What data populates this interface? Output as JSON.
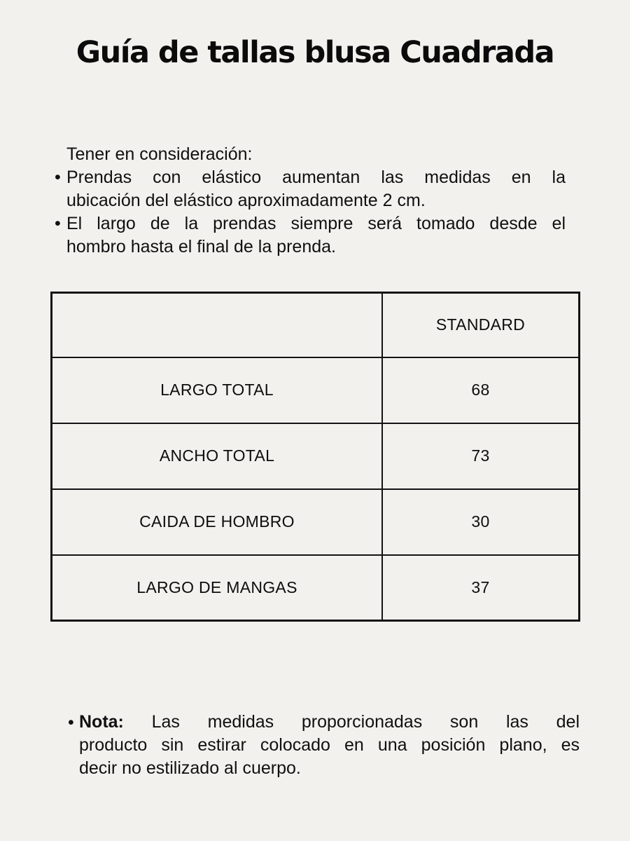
{
  "title": "Guía de tallas blusa Cuadrada",
  "glyphs": {
    "bullet": "•"
  },
  "considerations": {
    "heading": "Tener en consideración:",
    "items": [
      {
        "lines": [
          "Prendas con elástico aumentan las medidas en la",
          "ubicación del elástico aproximadamente 2 cm."
        ]
      },
      {
        "lines": [
          "El largo de la prendas siempre será tomado desde el",
          "hombro hasta el final de la prenda."
        ]
      }
    ]
  },
  "size_table": {
    "header": {
      "measure_label": "",
      "size_label": "STANDARD"
    },
    "rows": [
      {
        "label": "LARGO TOTAL",
        "value": "68"
      },
      {
        "label": "ANCHO TOTAL",
        "value": "73"
      },
      {
        "label": "CAIDA DE HOMBRO",
        "value": "30"
      },
      {
        "label": "LARGO DE MANGAS",
        "value": "37"
      }
    ]
  },
  "note": {
    "label": "Nota:",
    "lines": [
      "Las medidas proporcionadas son las del",
      "producto sin estirar colocado en una posición plano, es",
      "decir no estilizado al cuerpo."
    ]
  },
  "colors": {
    "background": "#f2f1ee",
    "text": "#101010",
    "table_border": "#131313"
  }
}
